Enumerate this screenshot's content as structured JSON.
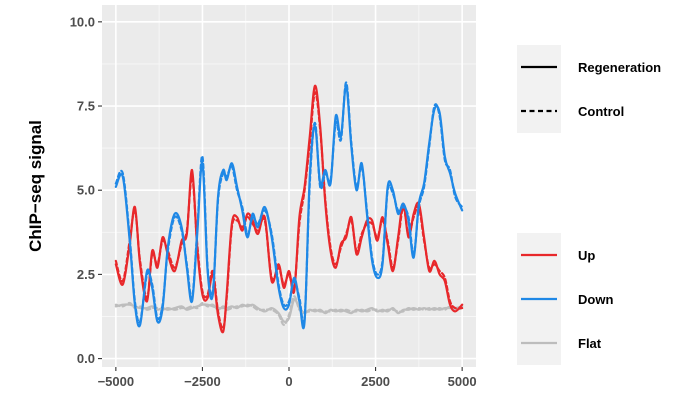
{
  "chart_data": {
    "type": "line",
    "title": "",
    "xlabel": "",
    "ylabel": "ChIP−seq signal",
    "xlim": [
      -5400,
      5400
    ],
    "ylim": [
      -0.25,
      10.5
    ],
    "x_ticks": [
      -5000,
      -2500,
      0,
      2500,
      5000
    ],
    "x_tick_labels": [
      "−5000",
      "−2500",
      "0",
      "2500",
      "5000"
    ],
    "y_ticks": [
      0.0,
      2.5,
      5.0,
      7.5,
      10.0
    ],
    "y_tick_labels": [
      "0.0",
      "2.5",
      "5.0",
      "7.5",
      "10.0"
    ],
    "grid": true,
    "legend_position": "right",
    "linetype_legend": [
      {
        "label": "Regeneration",
        "style": "solid"
      },
      {
        "label": "Control",
        "style": "dashed"
      }
    ],
    "color_legend": [
      {
        "label": "Up",
        "color": "#e8282b"
      },
      {
        "label": "Down",
        "color": "#1f88e6"
      },
      {
        "label": "Flat",
        "color": "#bdbdbd"
      }
    ],
    "x": [
      -5000,
      -4800,
      -4600,
      -4450,
      -4300,
      -4100,
      -3950,
      -3800,
      -3650,
      -3500,
      -3300,
      -3100,
      -2950,
      -2800,
      -2650,
      -2500,
      -2350,
      -2200,
      -2050,
      -1900,
      -1800,
      -1650,
      -1500,
      -1350,
      -1200,
      -1050,
      -900,
      -700,
      -500,
      -300,
      -150,
      0,
      150,
      300,
      450,
      600,
      750,
      900,
      1050,
      1200,
      1350,
      1500,
      1650,
      1800,
      1950,
      2100,
      2250,
      2400,
      2550,
      2700,
      2850,
      3000,
      3150,
      3300,
      3450,
      3600,
      3750,
      3900,
      4050,
      4200,
      4350,
      4500,
      4650,
      4800,
      5000
    ],
    "series": [
      {
        "group": "Up",
        "condition": "Regeneration",
        "values": [
          2.8,
          2.2,
          3.4,
          4.5,
          2.8,
          1.7,
          3.2,
          2.7,
          3.6,
          3.1,
          2.6,
          3.5,
          3.7,
          5.6,
          3.3,
          1.9,
          1.8,
          2.5,
          1.3,
          0.8,
          1.9,
          4.0,
          4.2,
          3.8,
          4.3,
          4.1,
          3.7,
          4.2,
          2.3,
          2.8,
          2.1,
          2.6,
          2.0,
          4.2,
          5.1,
          6.6,
          8.1,
          6.9,
          4.6,
          3.2,
          2.7,
          3.4,
          3.6,
          4.2,
          3.1,
          3.6,
          4.1,
          4.1,
          3.5,
          4.2,
          3.4,
          2.6,
          3.6,
          4.6,
          3.6,
          4.3,
          4.6,
          3.6,
          2.6,
          2.9,
          2.5,
          2.3,
          1.6,
          1.4,
          1.6
        ]
      },
      {
        "group": "Up",
        "condition": "Control",
        "values": [
          2.9,
          2.3,
          3.5,
          4.4,
          2.9,
          1.8,
          3.1,
          2.8,
          3.5,
          3.2,
          2.7,
          3.4,
          3.8,
          5.4,
          3.4,
          2.0,
          1.9,
          2.6,
          1.4,
          0.9,
          1.8,
          3.9,
          4.1,
          3.9,
          4.2,
          4.0,
          3.8,
          4.1,
          2.4,
          2.7,
          2.2,
          2.5,
          2.1,
          4.0,
          5.0,
          6.4,
          7.9,
          6.8,
          4.7,
          3.3,
          2.8,
          3.3,
          3.7,
          4.1,
          3.2,
          3.7,
          4.0,
          4.0,
          3.6,
          4.1,
          3.5,
          2.7,
          3.5,
          4.5,
          3.7,
          4.2,
          4.5,
          3.5,
          2.7,
          2.8,
          2.6,
          2.4,
          1.7,
          1.5,
          1.5
        ]
      },
      {
        "group": "Down",
        "condition": "Regeneration",
        "values": [
          5.1,
          5.4,
          3.5,
          1.6,
          1.0,
          2.6,
          2.1,
          1.1,
          1.5,
          3.3,
          4.3,
          3.9,
          2.7,
          1.7,
          3.7,
          5.8,
          2.6,
          1.9,
          4.8,
          5.6,
          5.3,
          5.8,
          5.1,
          4.4,
          3.6,
          4.3,
          3.9,
          4.5,
          3.6,
          2.1,
          1.5,
          1.6,
          2.4,
          1.7,
          1.1,
          5.4,
          6.9,
          5.2,
          5.6,
          5.2,
          7.2,
          6.6,
          8.1,
          6.3,
          5.0,
          5.8,
          4.3,
          2.9,
          2.4,
          2.8,
          5.1,
          5.0,
          4.3,
          4.6,
          4.1,
          3.0,
          4.6,
          5.2,
          6.4,
          7.4,
          7.3,
          6.0,
          5.5,
          4.9,
          4.4
        ]
      },
      {
        "group": "Down",
        "condition": "Control",
        "values": [
          5.2,
          5.5,
          3.6,
          1.7,
          1.1,
          2.5,
          2.2,
          1.2,
          1.6,
          3.2,
          4.2,
          3.8,
          2.8,
          1.8,
          3.8,
          6.0,
          2.7,
          2.0,
          4.7,
          5.5,
          5.4,
          5.7,
          5.0,
          4.5,
          3.7,
          4.2,
          4.0,
          4.4,
          3.7,
          2.2,
          1.6,
          1.7,
          2.3,
          1.8,
          1.2,
          5.2,
          7.0,
          5.1,
          5.5,
          5.3,
          7.0,
          6.5,
          8.2,
          6.4,
          5.1,
          5.7,
          4.4,
          3.0,
          2.5,
          2.9,
          5.0,
          4.9,
          4.4,
          4.5,
          4.2,
          3.1,
          4.5,
          5.1,
          6.3,
          7.5,
          7.2,
          5.9,
          5.6,
          4.8,
          4.5
        ]
      },
      {
        "group": "Flat",
        "condition": "Regeneration",
        "values": [
          1.55,
          1.6,
          1.6,
          1.55,
          1.5,
          1.5,
          1.55,
          1.45,
          1.5,
          1.45,
          1.5,
          1.55,
          1.45,
          1.5,
          1.55,
          1.6,
          1.6,
          1.55,
          1.5,
          1.5,
          1.5,
          1.55,
          1.5,
          1.6,
          1.55,
          1.6,
          1.5,
          1.4,
          1.5,
          1.35,
          1.1,
          1.2,
          1.75,
          1.5,
          1.35,
          1.45,
          1.4,
          1.45,
          1.35,
          1.45,
          1.4,
          1.45,
          1.4,
          1.35,
          1.45,
          1.4,
          1.45,
          1.5,
          1.4,
          1.45,
          1.4,
          1.5,
          1.35,
          1.45,
          1.45,
          1.5,
          1.45,
          1.5,
          1.45,
          1.5,
          1.45,
          1.5,
          1.5,
          1.5,
          1.55
        ]
      },
      {
        "group": "Flat",
        "condition": "Control",
        "values": [
          1.6,
          1.55,
          1.65,
          1.5,
          1.55,
          1.45,
          1.5,
          1.5,
          1.45,
          1.5,
          1.45,
          1.5,
          1.5,
          1.55,
          1.5,
          1.65,
          1.55,
          1.6,
          1.45,
          1.55,
          1.45,
          1.5,
          1.55,
          1.55,
          1.6,
          1.55,
          1.45,
          1.45,
          1.45,
          1.3,
          1.0,
          1.3,
          1.85,
          1.45,
          1.4,
          1.4,
          1.45,
          1.4,
          1.4,
          1.4,
          1.45,
          1.4,
          1.45,
          1.4,
          1.4,
          1.45,
          1.4,
          1.45,
          1.45,
          1.4,
          1.45,
          1.45,
          1.4,
          1.4,
          1.5,
          1.45,
          1.5,
          1.45,
          1.5,
          1.45,
          1.5,
          1.45,
          1.55,
          1.45,
          1.5
        ]
      }
    ]
  }
}
